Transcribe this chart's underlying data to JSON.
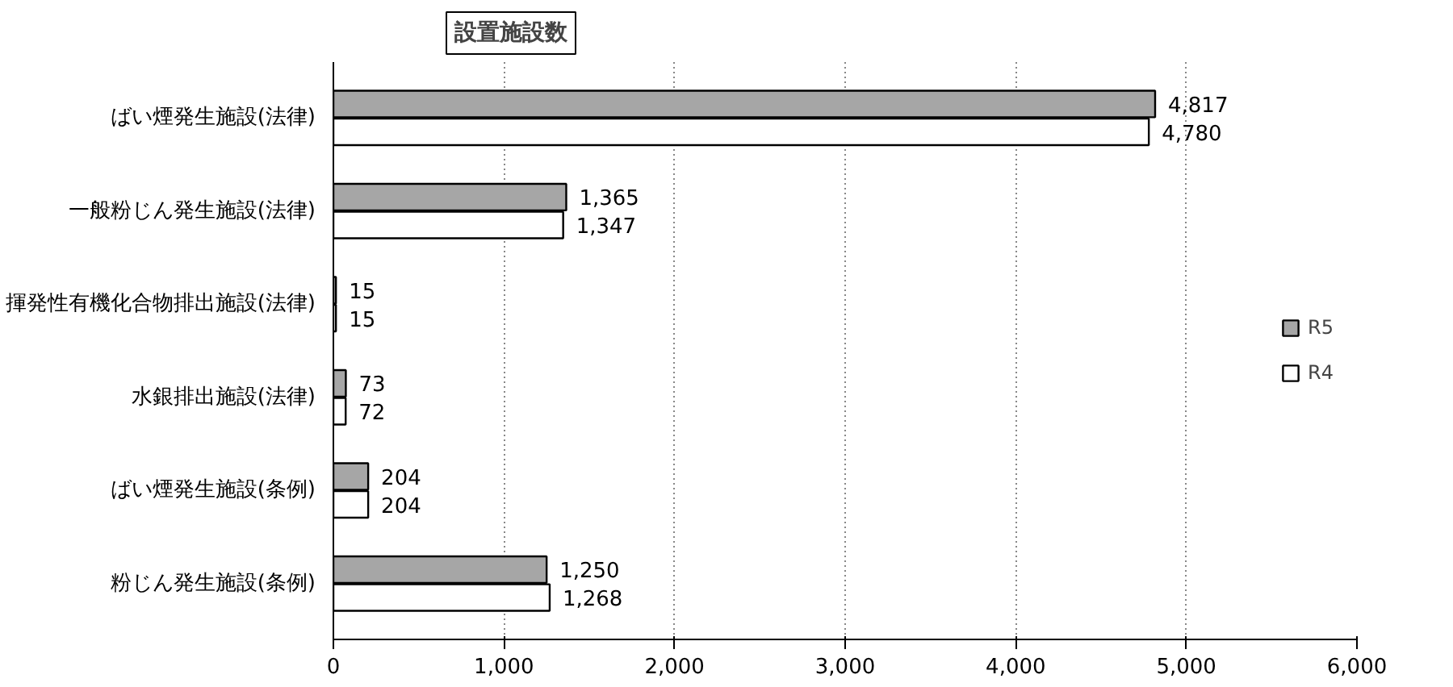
{
  "chart_data": {
    "type": "bar",
    "orientation": "horizontal",
    "title": "設置施設数",
    "categories": [
      "ばい煙発生施設(法律)",
      "一般粉じん発生施設(法律)",
      "揮発性有機化合物排出施設(法律)",
      "水銀排出施設(法律)",
      "ばい煙発生施設(条例)",
      "粉じん発生施設(条例)"
    ],
    "series": [
      {
        "name": "R5",
        "color": "#a6a6a6",
        "values": [
          4817,
          1365,
          15,
          73,
          204,
          1250
        ],
        "value_labels": [
          "4,817",
          "1,365",
          "15",
          "73",
          "204",
          "1,250"
        ]
      },
      {
        "name": "R4",
        "color": "#ffffff",
        "values": [
          4780,
          1347,
          15,
          72,
          204,
          1268
        ],
        "value_labels": [
          "4,780",
          "1,347",
          "15",
          "72",
          "204",
          "1,268"
        ]
      }
    ],
    "xlim": [
      0,
      6000
    ],
    "xticks": [
      0,
      {
        "value": 1000,
        "label": "1,000"
      },
      {
        "value": 2000,
        "label": "2,000"
      },
      {
        "value": 3000,
        "label": "3,000"
      },
      {
        "value": 4000,
        "label": "4,000"
      },
      {
        "value": 5000,
        "label": "5,000"
      },
      {
        "value": 6000,
        "label": "6,000"
      }
    ],
    "grid": "x",
    "legend": "right"
  }
}
